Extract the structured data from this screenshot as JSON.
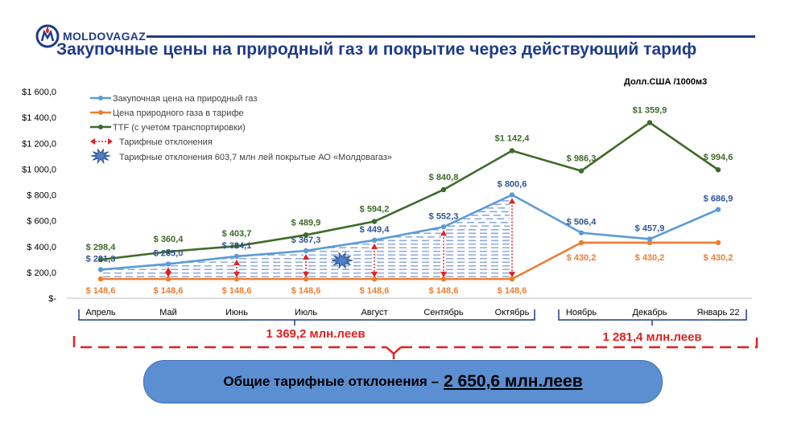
{
  "header": {
    "logo_text": "MOLDOVAGAZ",
    "title": "Закупочные цены на природный газ и покрытие через действующий тариф",
    "unit_label": "Долл.США /1000м3"
  },
  "colors": {
    "purchase": "#5b9bd5",
    "tariff": "#ed7d31",
    "ttf": "#3e6b2a",
    "deviation": "#e02020",
    "title": "#1f3c88"
  },
  "chart_data": {
    "type": "line",
    "categories": [
      "Апрель",
      "Май",
      "Июнь",
      "Июль",
      "Август",
      "Сентябрь",
      "Октябрь",
      "Ноябрь",
      "Декабрь",
      "Январь 22"
    ],
    "y_ticks": [
      "$-",
      "$ 200,0",
      "$ 400,0",
      "$ 600,0",
      "$ 800,0",
      "$1 000,0",
      "$1 200,0",
      "$1 400,0",
      "$1 600,0"
    ],
    "ylim": [
      0,
      1600
    ],
    "series": [
      {
        "name": "Закупочная цена на природный газ",
        "color": "#5b9bd5",
        "values": [
          221.3,
          265.0,
          324.1,
          367.3,
          449.4,
          552.3,
          800.6,
          506.4,
          457.9,
          686.9
        ],
        "labels": [
          "$ 221,3",
          "$ 265,0",
          "$ 324,1",
          "$ 367,3",
          "$ 449,4",
          "$ 552,3",
          "$ 800,6",
          "$ 506,4",
          "$ 457,9",
          "$ 686,9"
        ]
      },
      {
        "name": "Цена природного газа в тарифе",
        "color": "#ed7d31",
        "values": [
          148.6,
          148.6,
          148.6,
          148.6,
          148.6,
          148.6,
          148.6,
          430.2,
          430.2,
          430.2
        ],
        "labels": [
          "$ 148,6",
          "$ 148,6",
          "$ 148,6",
          "$ 148,6",
          "$ 148,6",
          "$ 148,6",
          "$ 148,6",
          "$ 430,2",
          "$ 430,2",
          "$ 430,2"
        ]
      },
      {
        "name": "TTF (с учетом транспортировки)",
        "color": "#3e6b2a",
        "values": [
          298.4,
          360.4,
          403.7,
          489.9,
          594.2,
          840.8,
          1142.4,
          986.3,
          1359.9,
          994.6
        ],
        "labels": [
          "$ 298,4",
          "$ 360,4",
          "$ 403,7",
          "$ 489,9",
          "$ 594,2",
          "$ 840,8",
          "$1 142,4",
          "$ 986,3",
          "$1 359,9",
          "$ 994,6"
        ]
      }
    ],
    "legend": [
      "Закупочная цена на природный газ",
      "Цена природного газа в тарифе",
      "TTF (с учетом транспортировки)",
      "Тарифные отклонения",
      "Тарифные отклонения 603,7 млн лей покрытые АО «Молдовагаз»"
    ],
    "legend_position": "top-left",
    "grid": false,
    "group_totals": [
      {
        "label": "1 369,2 млн.леев",
        "from": "Апрель",
        "to": "Октябрь"
      },
      {
        "label": "1 281,4 млн.леев",
        "from": "Ноябрь",
        "to": "Январь 22"
      }
    ]
  },
  "total": {
    "prefix": "Общие тарифные отклонения –",
    "value": "2 650,6 млн.леев"
  }
}
